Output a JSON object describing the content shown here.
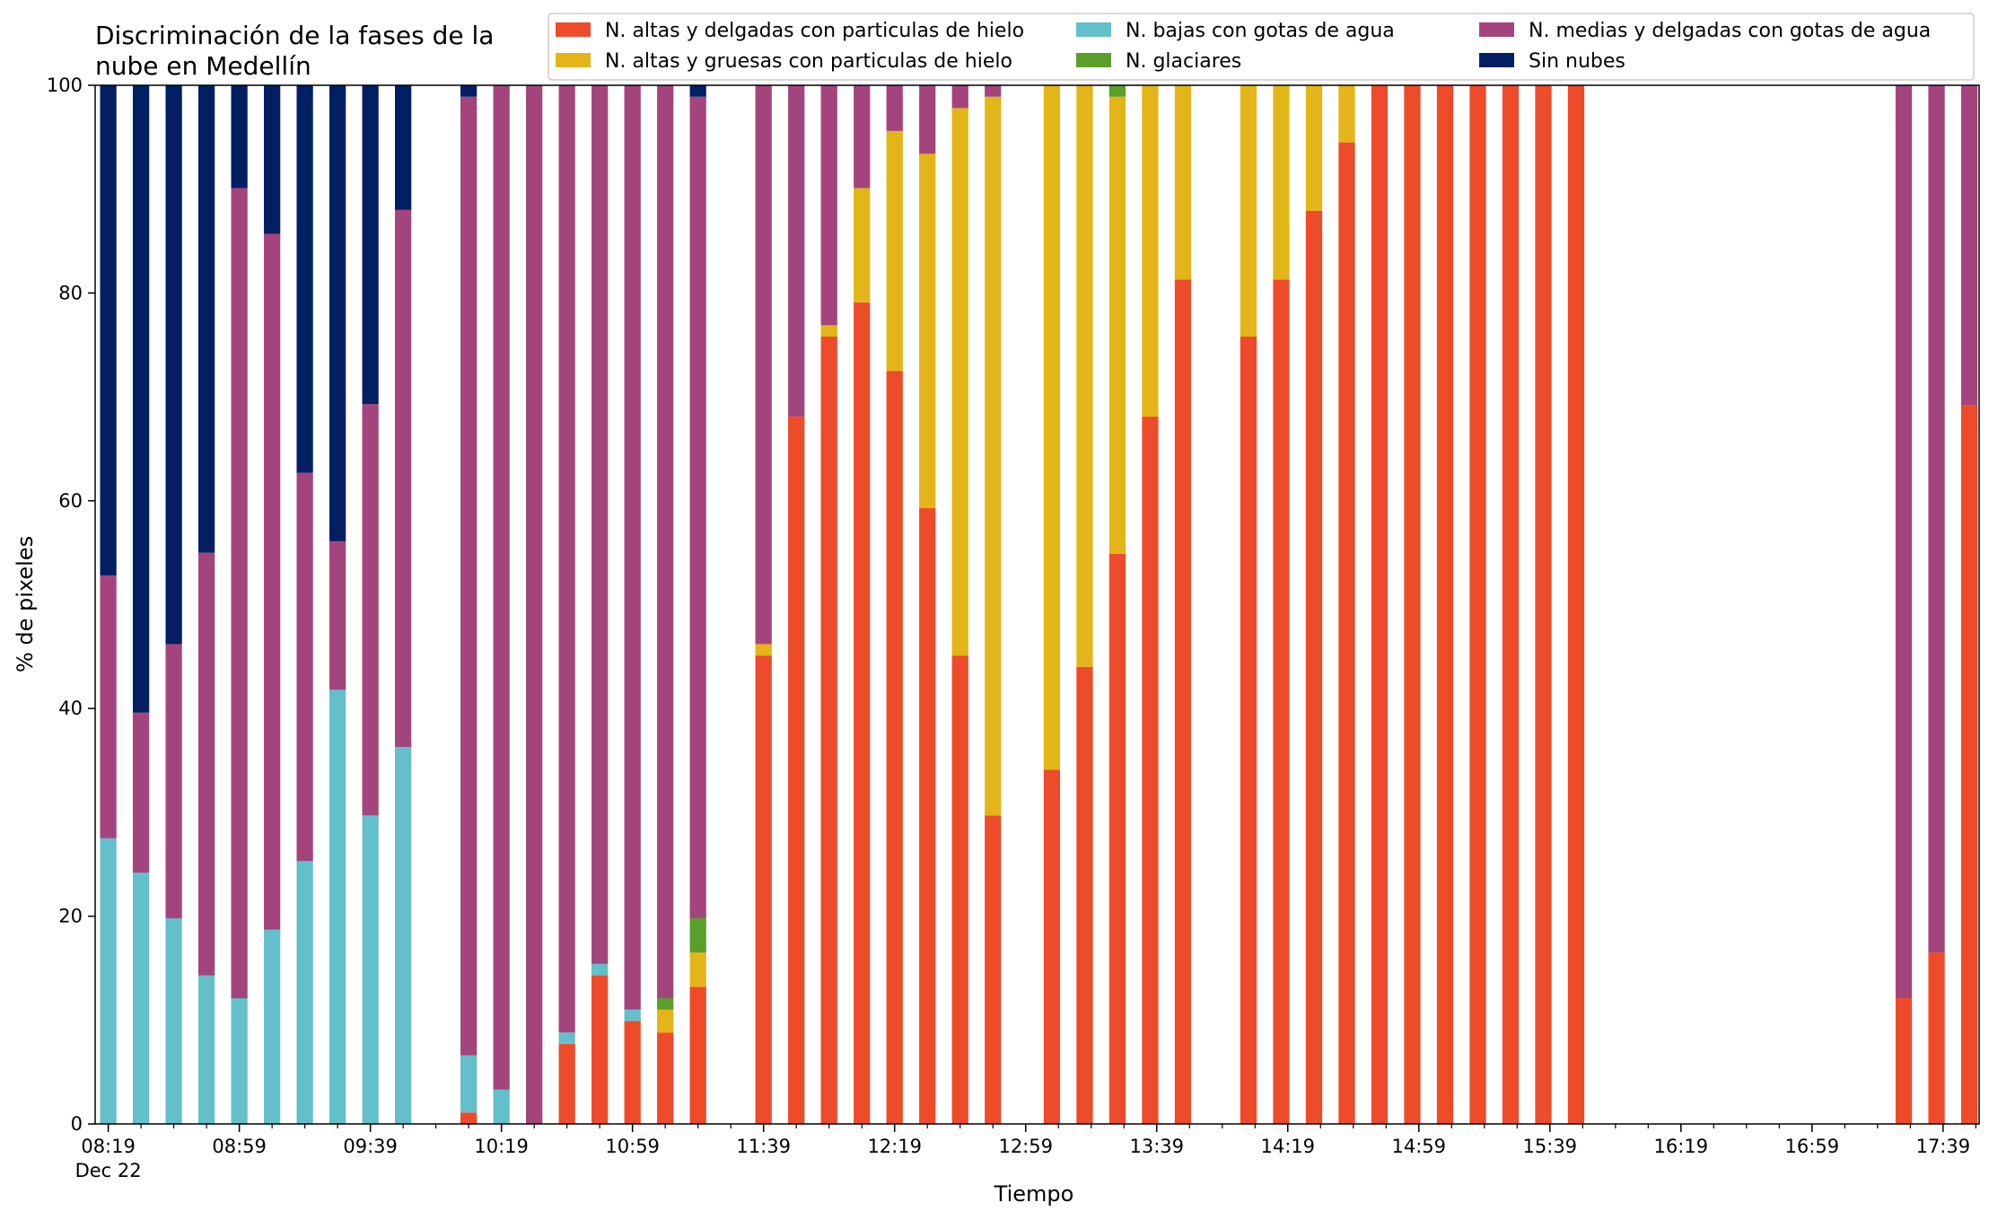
{
  "chart_data": {
    "type": "bar",
    "stacked": true,
    "title_line1": "Discriminación de la fases de la",
    "title_line2": "nube en Medellín",
    "xlabel": "Tiempo",
    "ylabel": "% de pixeles",
    "ylim": [
      0,
      100
    ],
    "yticks": [
      "0",
      "20",
      "40",
      "60",
      "80",
      "100"
    ],
    "xlim_minutes": [
      495,
      1070
    ],
    "bar_width_minutes": 5,
    "xtick_labels": [
      {
        "minute": 499,
        "label": "08:19"
      },
      {
        "minute": 539,
        "label": "08:59"
      },
      {
        "minute": 579,
        "label": "09:39"
      },
      {
        "minute": 619,
        "label": "10:19"
      },
      {
        "minute": 659,
        "label": "10:59"
      },
      {
        "minute": 699,
        "label": "11:39"
      },
      {
        "minute": 739,
        "label": "12:19"
      },
      {
        "minute": 779,
        "label": "12:59"
      },
      {
        "minute": 819,
        "label": "13:39"
      },
      {
        "minute": 859,
        "label": "14:19"
      },
      {
        "minute": 899,
        "label": "14:59"
      },
      {
        "minute": 939,
        "label": "15:39"
      },
      {
        "minute": 979,
        "label": "16:19"
      },
      {
        "minute": 1019,
        "label": "16:59"
      },
      {
        "minute": 1059,
        "label": "17:39"
      }
    ],
    "date_label": "Dec 22",
    "minor_tick_step_minutes": 10,
    "legend_position": "top-right",
    "colors": {
      "altas_delgadas": "#ee4b2b",
      "altas_gruesas": "#e3b518",
      "bajas": "#63bfc9",
      "glaciares": "#5c9e2a",
      "medias": "#a3457c",
      "sin_nubes": "#021f63"
    },
    "legend": [
      {
        "key": "altas_delgadas",
        "label": "N. altas y delgadas con particulas de hielo"
      },
      {
        "key": "altas_gruesas",
        "label": "N. altas y gruesas con particulas de hielo"
      },
      {
        "key": "bajas",
        "label": "N. bajas con gotas de agua"
      },
      {
        "key": "glaciares",
        "label": "N. glaciares"
      },
      {
        "key": "medias",
        "label": "N. medias y delgadas con gotas de agua"
      },
      {
        "key": "sin_nubes",
        "label": "Sin nubes"
      }
    ],
    "stack_order": [
      "altas_delgadas",
      "altas_gruesas",
      "bajas",
      "glaciares",
      "medias",
      "sin_nubes"
    ],
    "time_unit": "minutes since 00:00 on Dec 22",
    "bars": [
      {
        "minute": 499,
        "altas_delgadas": 0,
        "altas_gruesas": 0,
        "bajas": 27.5,
        "glaciares": 0,
        "medias": 25.3,
        "sin_nubes": 47.2
      },
      {
        "minute": 509,
        "altas_delgadas": 0,
        "altas_gruesas": 0,
        "bajas": 24.2,
        "glaciares": 0,
        "medias": 15.4,
        "sin_nubes": 60.4
      },
      {
        "minute": 519,
        "altas_delgadas": 0,
        "altas_gruesas": 0,
        "bajas": 19.8,
        "glaciares": 0,
        "medias": 26.4,
        "sin_nubes": 53.8
      },
      {
        "minute": 529,
        "altas_delgadas": 0,
        "altas_gruesas": 0,
        "bajas": 14.3,
        "glaciares": 0,
        "medias": 40.7,
        "sin_nubes": 45.0
      },
      {
        "minute": 539,
        "altas_delgadas": 0,
        "altas_gruesas": 0,
        "bajas": 12.1,
        "glaciares": 0,
        "medias": 78.0,
        "sin_nubes": 9.9
      },
      {
        "minute": 549,
        "altas_delgadas": 0,
        "altas_gruesas": 0,
        "bajas": 18.7,
        "glaciares": 0,
        "medias": 67.0,
        "sin_nubes": 14.3
      },
      {
        "minute": 559,
        "altas_delgadas": 0,
        "altas_gruesas": 0,
        "bajas": 25.3,
        "glaciares": 0,
        "medias": 37.4,
        "sin_nubes": 37.3
      },
      {
        "minute": 569,
        "altas_delgadas": 0,
        "altas_gruesas": 0,
        "bajas": 41.8,
        "glaciares": 0,
        "medias": 14.3,
        "sin_nubes": 43.9
      },
      {
        "minute": 579,
        "altas_delgadas": 0,
        "altas_gruesas": 0,
        "bajas": 29.7,
        "glaciares": 0,
        "medias": 39.6,
        "sin_nubes": 30.7
      },
      {
        "minute": 589,
        "altas_delgadas": 0,
        "altas_gruesas": 0,
        "bajas": 36.3,
        "glaciares": 0,
        "medias": 51.7,
        "sin_nubes": 12.0
      },
      {
        "minute": 609,
        "altas_delgadas": 1.1,
        "altas_gruesas": 0,
        "bajas": 5.5,
        "glaciares": 0,
        "medias": 92.3,
        "sin_nubes": 1.1
      },
      {
        "minute": 619,
        "altas_delgadas": 0,
        "altas_gruesas": 0,
        "bajas": 3.3,
        "glaciares": 0,
        "medias": 96.7,
        "sin_nubes": 0
      },
      {
        "minute": 629,
        "altas_delgadas": 0,
        "altas_gruesas": 0,
        "bajas": 0,
        "glaciares": 0,
        "medias": 100,
        "sin_nubes": 0
      },
      {
        "minute": 639,
        "altas_delgadas": 7.7,
        "altas_gruesas": 0,
        "bajas": 1.1,
        "glaciares": 0,
        "medias": 91.2,
        "sin_nubes": 0
      },
      {
        "minute": 649,
        "altas_delgadas": 14.3,
        "altas_gruesas": 0,
        "bajas": 1.1,
        "glaciares": 0,
        "medias": 84.6,
        "sin_nubes": 0
      },
      {
        "minute": 659,
        "altas_delgadas": 9.9,
        "altas_gruesas": 0,
        "bajas": 1.1,
        "glaciares": 0,
        "medias": 89.0,
        "sin_nubes": 0
      },
      {
        "minute": 669,
        "altas_delgadas": 8.8,
        "altas_gruesas": 2.2,
        "bajas": 0,
        "glaciares": 1.1,
        "medias": 87.9,
        "sin_nubes": 0
      },
      {
        "minute": 679,
        "altas_delgadas": 13.2,
        "altas_gruesas": 3.3,
        "bajas": 0,
        "glaciares": 3.3,
        "medias": 79.1,
        "sin_nubes": 1.1
      },
      {
        "minute": 699,
        "altas_delgadas": 45.1,
        "altas_gruesas": 1.1,
        "bajas": 0,
        "glaciares": 0,
        "medias": 53.8,
        "sin_nubes": 0
      },
      {
        "minute": 709,
        "altas_delgadas": 68.1,
        "altas_gruesas": 0,
        "bajas": 0,
        "glaciares": 0,
        "medias": 31.9,
        "sin_nubes": 0
      },
      {
        "minute": 719,
        "altas_delgadas": 75.8,
        "altas_gruesas": 1.1,
        "bajas": 0,
        "glaciares": 0,
        "medias": 23.1,
        "sin_nubes": 0
      },
      {
        "minute": 729,
        "altas_delgadas": 79.1,
        "altas_gruesas": 11.0,
        "bajas": 0,
        "glaciares": 0,
        "medias": 9.9,
        "sin_nubes": 0
      },
      {
        "minute": 739,
        "altas_delgadas": 72.5,
        "altas_gruesas": 23.1,
        "bajas": 0,
        "glaciares": 0,
        "medias": 4.4,
        "sin_nubes": 0
      },
      {
        "minute": 749,
        "altas_delgadas": 59.3,
        "altas_gruesas": 34.1,
        "bajas": 0,
        "glaciares": 0,
        "medias": 6.6,
        "sin_nubes": 0
      },
      {
        "minute": 759,
        "altas_delgadas": 45.1,
        "altas_gruesas": 52.7,
        "bajas": 0,
        "glaciares": 0,
        "medias": 2.2,
        "sin_nubes": 0
      },
      {
        "minute": 769,
        "altas_delgadas": 29.7,
        "altas_gruesas": 69.2,
        "bajas": 0,
        "glaciares": 0,
        "medias": 1.1,
        "sin_nubes": 0
      },
      {
        "minute": 787,
        "altas_delgadas": 34.1,
        "altas_gruesas": 65.9,
        "bajas": 0,
        "glaciares": 0,
        "medias": 0,
        "sin_nubes": 0
      },
      {
        "minute": 797,
        "altas_delgadas": 44.0,
        "altas_gruesas": 56.0,
        "bajas": 0,
        "glaciares": 0,
        "medias": 0,
        "sin_nubes": 0
      },
      {
        "minute": 807,
        "altas_delgadas": 54.9,
        "altas_gruesas": 44.0,
        "bajas": 0,
        "glaciares": 1.1,
        "medias": 0,
        "sin_nubes": 0
      },
      {
        "minute": 817,
        "altas_delgadas": 68.1,
        "altas_gruesas": 31.9,
        "bajas": 0,
        "glaciares": 0,
        "medias": 0,
        "sin_nubes": 0
      },
      {
        "minute": 827,
        "altas_delgadas": 81.3,
        "altas_gruesas": 18.7,
        "bajas": 0,
        "glaciares": 0,
        "medias": 0,
        "sin_nubes": 0
      },
      {
        "minute": 847,
        "altas_delgadas": 75.8,
        "altas_gruesas": 24.2,
        "bajas": 0,
        "glaciares": 0,
        "medias": 0,
        "sin_nubes": 0
      },
      {
        "minute": 857,
        "altas_delgadas": 81.3,
        "altas_gruesas": 18.7,
        "bajas": 0,
        "glaciares": 0,
        "medias": 0,
        "sin_nubes": 0
      },
      {
        "minute": 867,
        "altas_delgadas": 87.9,
        "altas_gruesas": 12.1,
        "bajas": 0,
        "glaciares": 0,
        "medias": 0,
        "sin_nubes": 0
      },
      {
        "minute": 877,
        "altas_delgadas": 94.5,
        "altas_gruesas": 5.5,
        "bajas": 0,
        "glaciares": 0,
        "medias": 0,
        "sin_nubes": 0
      },
      {
        "minute": 887,
        "altas_delgadas": 100,
        "altas_gruesas": 0,
        "bajas": 0,
        "glaciares": 0,
        "medias": 0,
        "sin_nubes": 0
      },
      {
        "minute": 897,
        "altas_delgadas": 100,
        "altas_gruesas": 0,
        "bajas": 0,
        "glaciares": 0,
        "medias": 0,
        "sin_nubes": 0
      },
      {
        "minute": 907,
        "altas_delgadas": 100,
        "altas_gruesas": 0,
        "bajas": 0,
        "glaciares": 0,
        "medias": 0,
        "sin_nubes": 0
      },
      {
        "minute": 917,
        "altas_delgadas": 100,
        "altas_gruesas": 0,
        "bajas": 0,
        "glaciares": 0,
        "medias": 0,
        "sin_nubes": 0
      },
      {
        "minute": 927,
        "altas_delgadas": 100,
        "altas_gruesas": 0,
        "bajas": 0,
        "glaciares": 0,
        "medias": 0,
        "sin_nubes": 0
      },
      {
        "minute": 937,
        "altas_delgadas": 100,
        "altas_gruesas": 0,
        "bajas": 0,
        "glaciares": 0,
        "medias": 0,
        "sin_nubes": 0
      },
      {
        "minute": 947,
        "altas_delgadas": 100,
        "altas_gruesas": 0,
        "bajas": 0,
        "glaciares": 0,
        "medias": 0,
        "sin_nubes": 0
      },
      {
        "minute": 1047,
        "altas_delgadas": 12.1,
        "altas_gruesas": 0,
        "bajas": 0,
        "glaciares": 0,
        "medias": 87.9,
        "sin_nubes": 0
      },
      {
        "minute": 1057,
        "altas_delgadas": 16.5,
        "altas_gruesas": 0,
        "bajas": 0,
        "glaciares": 0,
        "medias": 83.5,
        "sin_nubes": 0
      },
      {
        "minute": 1067,
        "altas_delgadas": 69.2,
        "altas_gruesas": 0,
        "bajas": 0,
        "glaciares": 0,
        "medias": 30.8,
        "sin_nubes": 0
      }
    ]
  }
}
